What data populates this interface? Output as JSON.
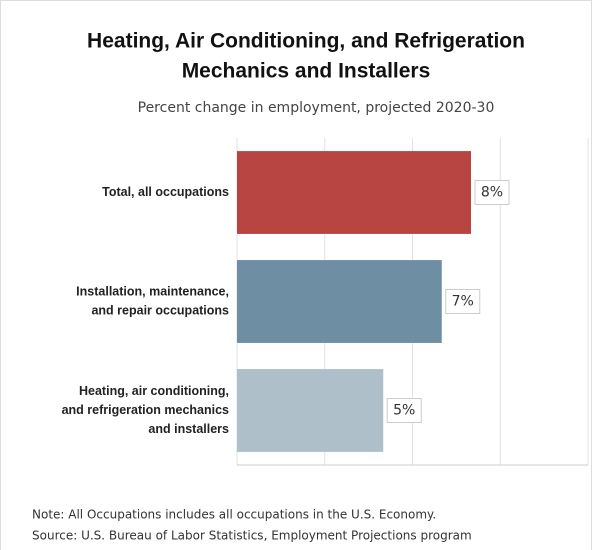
{
  "chart_data": {
    "type": "bar",
    "orientation": "horizontal",
    "title": [
      "Heating, Air Conditioning, and Refrigeration",
      "Mechanics and Installers"
    ],
    "subtitle": "Percent change in employment, projected 2020-30",
    "categories": [
      [
        "Total, all occupations"
      ],
      [
        "Installation, maintenance,",
        "and repair occupations"
      ],
      [
        "Heating, air conditioning,",
        "and refrigeration mechanics",
        "and installers"
      ]
    ],
    "values": [
      8,
      7,
      5
    ],
    "value_labels": [
      "8%",
      "7%",
      "5%"
    ],
    "colors": [
      "#b94543",
      "#6d8ea3",
      "#aebfca"
    ],
    "xlim": [
      0,
      12
    ],
    "xticks": [
      0,
      3,
      6,
      9,
      12
    ],
    "grid": true,
    "notes": [
      "Note: All Occupations includes all occupations in the U.S. Economy.",
      "Source: U.S. Bureau of Labor Statistics, Employment Projections program"
    ]
  }
}
